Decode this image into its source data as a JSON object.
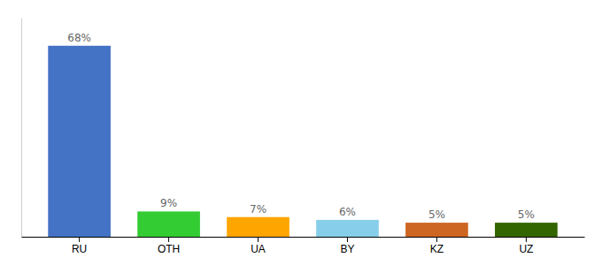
{
  "chart_data": {
    "type": "bar",
    "categories": [
      "RU",
      "OTH",
      "UA",
      "BY",
      "KZ",
      "UZ"
    ],
    "values": [
      68,
      9,
      7,
      6,
      5,
      5
    ],
    "value_labels": [
      "68%",
      "9%",
      "7%",
      "6%",
      "5%",
      "5%"
    ],
    "colors": [
      "#4472C4",
      "#33CC33",
      "#FFA500",
      "#87CEEB",
      "#CC6622",
      "#336600"
    ],
    "ylim": [
      0,
      78
    ],
    "grid": false,
    "data_labels": true,
    "tick_labels": "x"
  }
}
